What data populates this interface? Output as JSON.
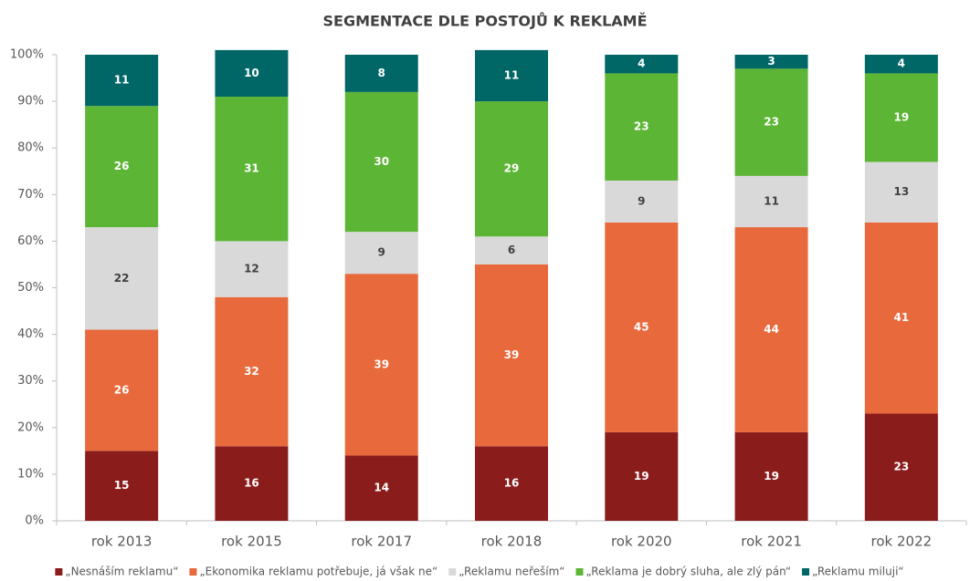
{
  "chart_data": {
    "type": "stacked_bar",
    "title": "SEGMENTACE DLE POSTOJŮ K REKLAMĚ",
    "categories": [
      "rok 2013",
      "rok 2015",
      "rok 2017",
      "rok 2018",
      "rok 2020",
      "rok 2021",
      "rok 2022"
    ],
    "series": [
      {
        "name": "„Nesnáším reklamu“",
        "color": "#8b1c1c",
        "values": [
          15,
          16,
          14,
          16,
          19,
          19,
          23
        ]
      },
      {
        "name": "„Ekonomika reklamu potřebuje, já však ne“",
        "color": "#e8693c",
        "values": [
          26,
          32,
          39,
          39,
          45,
          44,
          41
        ]
      },
      {
        "name": "„Reklamu neřeším“",
        "color": "#d9d9d9",
        "values": [
          22,
          12,
          9,
          6,
          9,
          11,
          13
        ]
      },
      {
        "name": "„Reklama je dobrý sluha, ale zlý pán“",
        "color": "#5db535",
        "values": [
          26,
          31,
          30,
          29,
          23,
          23,
          19
        ]
      },
      {
        "name": "„Reklamu miluji“",
        "color": "#006666",
        "values": [
          11,
          10,
          8,
          11,
          4,
          3,
          4
        ]
      }
    ],
    "ylim": [
      0,
      100
    ],
    "yticks": [
      {
        "value": 0,
        "label": "0%"
      },
      {
        "value": 10,
        "label": "10%"
      },
      {
        "value": 20,
        "label": "20%"
      },
      {
        "value": 30,
        "label": "30%"
      },
      {
        "value": 40,
        "label": "40%"
      },
      {
        "value": 50,
        "label": "50%"
      },
      {
        "value": 60,
        "label": "60%"
      },
      {
        "value": 70,
        "label": "70%"
      },
      {
        "value": 80,
        "label": "80%"
      },
      {
        "value": 90,
        "label": "90%"
      },
      {
        "value": 100,
        "label": "100%"
      }
    ],
    "legend": "bottom"
  }
}
